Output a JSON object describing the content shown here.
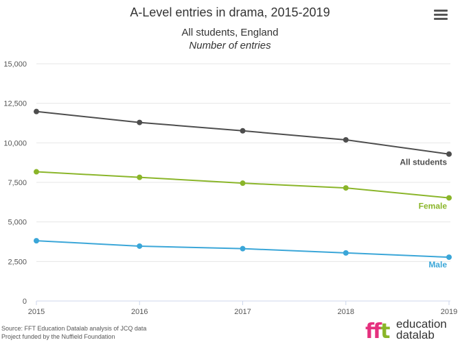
{
  "chart_data": {
    "type": "line",
    "title": "A-Level entries in drama, 2015-2019",
    "subtitle_line1": "All students, England",
    "subtitle_line2": "Number of entries",
    "x": [
      "2015",
      "2016",
      "2017",
      "2018",
      "2019"
    ],
    "y_ticks": [
      "0",
      "2,500",
      "5,000",
      "7,500",
      "10,000",
      "12,500",
      "15,000"
    ],
    "ylim": [
      0,
      15000
    ],
    "grid": true,
    "series": [
      {
        "name": "All students",
        "values": [
          11980,
          11290,
          10760,
          10190,
          9290
        ],
        "color": "#4d4d4d"
      },
      {
        "name": "Female",
        "values": [
          8170,
          7820,
          7450,
          7150,
          6520
        ],
        "color": "#8ab529"
      },
      {
        "name": "Male",
        "values": [
          3810,
          3470,
          3310,
          3040,
          2770
        ],
        "color": "#3aa6d8"
      }
    ]
  },
  "source": {
    "line1": "Source: FFT Education Datalab analysis of JCQ data",
    "line2": "Project funded by the Nuffield Foundation"
  },
  "logo": {
    "mark": "fft",
    "word_line1": "education",
    "word_line2": "datalab"
  },
  "menu_icon": "hamburger-menu-icon"
}
